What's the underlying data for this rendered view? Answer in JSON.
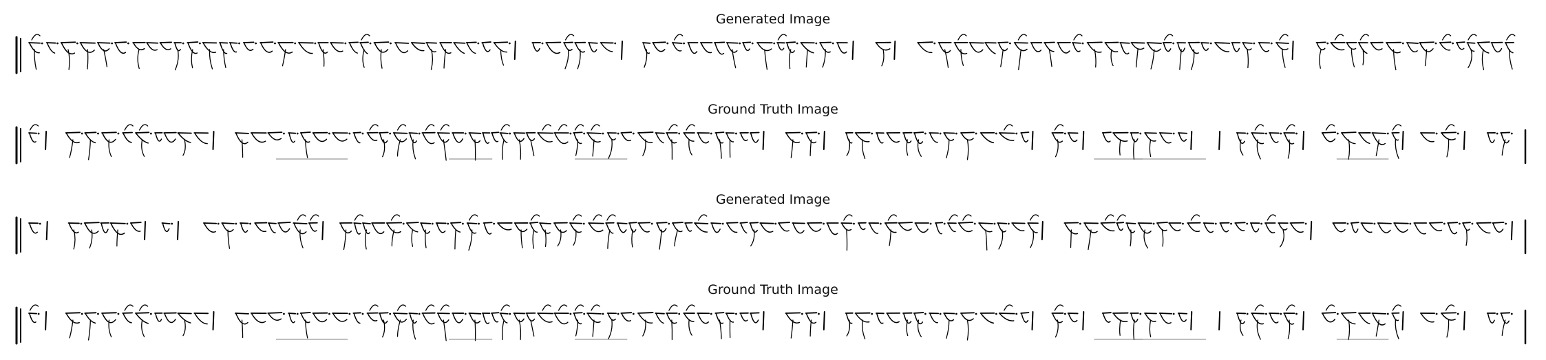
{
  "panels": [
    {
      "title": "Generated Image",
      "kind": "generated",
      "seed": 11
    },
    {
      "title": "Ground Truth Image",
      "kind": "truth",
      "seed": 23
    },
    {
      "title": "Generated Image",
      "kind": "generated",
      "seed": 37
    },
    {
      "title": "Ground Truth Image",
      "kind": "truth",
      "seed": 23
    }
  ],
  "colors": {
    "ink": "#000000",
    "background": "#ffffff",
    "title": "#111111"
  }
}
